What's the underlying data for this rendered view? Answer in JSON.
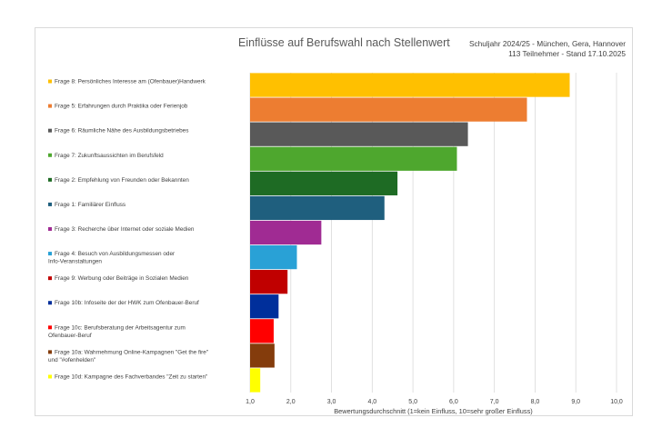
{
  "chart_data": {
    "type": "bar",
    "orientation": "horizontal",
    "title": "Einflüsse auf Berufswahl nach Stellenwert",
    "subtitle_lines": [
      "Schuljahr 2024/25 - München, Gera, Hannover",
      "113 Teilnehmer - Stand 17.10.2025"
    ],
    "xlabel": "Bewertungsdurchschnitt (1=kein Einfluss, 10=sehr großer Einfluss)",
    "ylabel": "",
    "xlim": [
      1,
      10
    ],
    "xticks": [
      "1,0",
      "2,0",
      "3,0",
      "4,0",
      "5,0",
      "6,0",
      "7,0",
      "8,0",
      "9,0",
      "10,0"
    ],
    "grid": true,
    "legend": "left",
    "categories": [
      "Frage 8: Persönliches Interesse am (Ofenbauer)Handwerk",
      "Frage 5: Erfahrungen durch Praktika oder Ferienjob",
      "Frage 6: Räumliche Nähe des Ausbildungsbetriebes",
      "Frage 7: Zukunftsaussichten im Berufsfeld",
      "Frage 2: Empfehlung von Freunden oder Bekannten",
      "Frage 1: Familiärer Einfluss",
      "Frage 3: Recherche über Internet oder soziale Medien",
      "Frage 4: Besuch von Ausbildungsmessen oder Info-Veranstaltungen",
      "Frage 9: Werbung oder Beiträge in Sozialen Medien",
      "Frage 10b: Infoseite der der HWK zum Ofenbauer-Beruf",
      "Frage 10c: Berufsberatung der Arbeitsagentur zum Ofenbauer-Beruf",
      "Frage 10a: Wahrnehmung Online-Kampagnen \"Get the fire\" und \"#ofenhelden\"",
      "Frage 10d: Kampagne des Fachverbandes \"Zeit zu starten\""
    ],
    "values": [
      8.85,
      7.8,
      6.35,
      6.08,
      4.62,
      4.3,
      2.75,
      2.15,
      1.92,
      1.7,
      1.58,
      1.6,
      1.25
    ],
    "colors": [
      "#ffc000",
      "#ed7d31",
      "#595959",
      "#4ea72e",
      "#1e6b24",
      "#1f5f7e",
      "#a02b93",
      "#29a1d6",
      "#c00000",
      "#002f9b",
      "#ff0000",
      "#843c0c",
      "#ffff00"
    ]
  }
}
